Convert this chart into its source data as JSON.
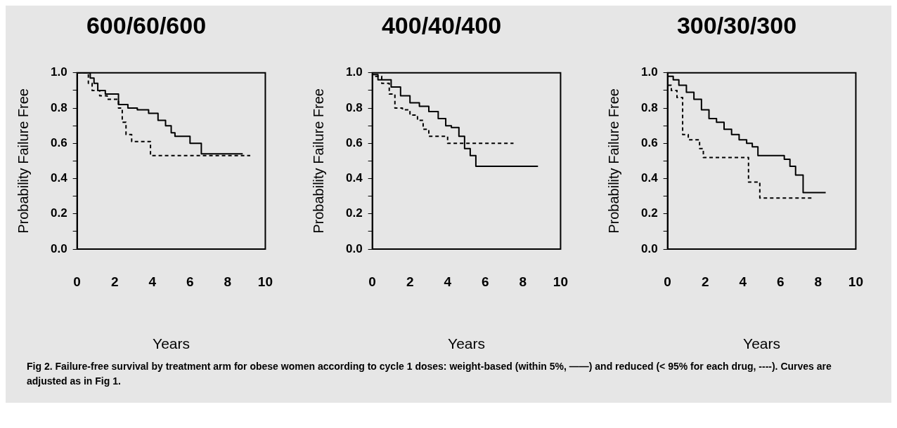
{
  "chart_data": [
    {
      "type": "step",
      "title": "600/60/600",
      "xlabel": "Years",
      "ylabel": "Probability Failure Free",
      "xlim": [
        0,
        10
      ],
      "xticks": [
        0,
        2,
        4,
        6,
        8,
        10
      ],
      "ylim": [
        0,
        1
      ],
      "yticks": [
        {
          "value": 0,
          "label": "0.0"
        },
        {
          "value": 0.1,
          "label": null
        },
        {
          "value": 0.2,
          "label": "0.2"
        },
        {
          "value": 0.3,
          "label": null
        },
        {
          "value": 0.4,
          "label": "0.4"
        },
        {
          "value": 0.5,
          "label": null
        },
        {
          "value": 0.6,
          "label": "0.6"
        },
        {
          "value": 0.7,
          "label": null
        },
        {
          "value": 0.8,
          "label": "0.8"
        },
        {
          "value": 0.9,
          "label": null
        },
        {
          "value": 1,
          "label": "1.0"
        }
      ],
      "grid": false,
      "legend": false,
      "marker": "none",
      "series": [
        {
          "color": "#000000",
          "line_style": "solid",
          "x": [
            0,
            0.7,
            0.9,
            1.1,
            1.5,
            2.2,
            2.7,
            3.2,
            3.8,
            4.3,
            4.7,
            5.0,
            5.2,
            6.0,
            6.6,
            7.1,
            8.8
          ],
          "values": [
            1,
            1,
            0.97,
            0.94,
            0.9,
            0.88,
            0.82,
            0.8,
            0.79,
            0.77,
            0.73,
            0.7,
            0.66,
            0.64,
            0.6,
            0.54,
            0.54
          ]
        },
        {
          "color": "#000000",
          "line_style": "dashed",
          "x": [
            0,
            0.6,
            0.8,
            1.2,
            1.6,
            2.2,
            2.4,
            2.6,
            2.9,
            3.9,
            5.3,
            9.2
          ],
          "values": [
            1,
            1,
            0.94,
            0.9,
            0.87,
            0.85,
            0.8,
            0.72,
            0.65,
            0.61,
            0.53,
            0.53
          ]
        }
      ]
    },
    {
      "type": "step",
      "title": "400/40/400",
      "xlabel": "Years",
      "ylabel": "Probability Failure Free",
      "xlim": [
        0,
        10
      ],
      "xticks": [
        0,
        2,
        4,
        6,
        8,
        10
      ],
      "ylim": [
        0,
        1
      ],
      "yticks": [
        {
          "value": 0,
          "label": "0.0"
        },
        {
          "value": 0.1,
          "label": null
        },
        {
          "value": 0.2,
          "label": "0.2"
        },
        {
          "value": 0.3,
          "label": null
        },
        {
          "value": 0.4,
          "label": "0.4"
        },
        {
          "value": 0.5,
          "label": null
        },
        {
          "value": 0.6,
          "label": "0.6"
        },
        {
          "value": 0.7,
          "label": null
        },
        {
          "value": 0.8,
          "label": "0.8"
        },
        {
          "value": 0.9,
          "label": null
        },
        {
          "value": 1,
          "label": "1.0"
        }
      ],
      "grid": false,
      "legend": false,
      "marker": "none",
      "series": [
        {
          "color": "#000000",
          "line_style": "solid",
          "x": [
            0,
            0.3,
            1.0,
            1.5,
            2.0,
            2.5,
            3.0,
            3.5,
            3.9,
            4.2,
            4.6,
            4.9,
            5.2,
            5.5,
            6.9,
            8.8
          ],
          "values": [
            1,
            0.99,
            0.96,
            0.92,
            0.87,
            0.83,
            0.81,
            0.78,
            0.74,
            0.7,
            0.69,
            0.64,
            0.57,
            0.53,
            0.47,
            0.47
          ]
        },
        {
          "color": "#000000",
          "line_style": "dashed",
          "x": [
            0,
            0.5,
            0.9,
            1.2,
            1.6,
            2.0,
            2.4,
            2.7,
            3.0,
            4.0,
            4.1,
            7.5
          ],
          "values": [
            1,
            0.98,
            0.94,
            0.88,
            0.8,
            0.79,
            0.76,
            0.73,
            0.68,
            0.64,
            0.6,
            0.6
          ]
        }
      ]
    },
    {
      "type": "step",
      "title": "300/30/300",
      "xlabel": "Years",
      "ylabel": "Probability Failure Free",
      "xlim": [
        0,
        10
      ],
      "xticks": [
        0,
        2,
        4,
        6,
        8,
        10
      ],
      "ylim": [
        0,
        1
      ],
      "yticks": [
        {
          "value": 0,
          "label": "0.0"
        },
        {
          "value": 0.1,
          "label": null
        },
        {
          "value": 0.2,
          "label": "0.2"
        },
        {
          "value": 0.3,
          "label": null
        },
        {
          "value": 0.4,
          "label": "0.4"
        },
        {
          "value": 0.5,
          "label": null
        },
        {
          "value": 0.6,
          "label": "0.6"
        },
        {
          "value": 0.7,
          "label": null
        },
        {
          "value": 0.8,
          "label": "0.8"
        },
        {
          "value": 0.9,
          "label": null
        },
        {
          "value": 1,
          "label": "1.0"
        }
      ],
      "grid": false,
      "legend": false,
      "marker": "none",
      "annotations": [
        "Fig 2.  Failure-free survival by treatment arm for obese women according to cycle 1 doses: weight-based (within 5%, ——) and reduced (< 95% for each drug, ----). Curves are adjusted as in Fig 1."
      ],
      "series": [
        {
          "color": "#000000",
          "line_style": "solid",
          "x": [
            0,
            0.3,
            0.6,
            1.0,
            1.4,
            1.8,
            2.2,
            2.6,
            3.0,
            3.4,
            3.8,
            4.2,
            4.5,
            4.8,
            5.0,
            6.2,
            6.5,
            6.8,
            7.2,
            7.8,
            8.4
          ],
          "values": [
            1,
            0.98,
            0.96,
            0.93,
            0.89,
            0.85,
            0.79,
            0.74,
            0.72,
            0.68,
            0.65,
            0.62,
            0.6,
            0.58,
            0.53,
            0.53,
            0.51,
            0.47,
            0.42,
            0.32,
            0.32
          ]
        },
        {
          "color": "#000000",
          "line_style": "dashed",
          "x": [
            0,
            0.2,
            0.5,
            0.8,
            1.1,
            1.7,
            1.9,
            4.3,
            4.9,
            7.0,
            7.7
          ],
          "values": [
            1,
            0.93,
            0.9,
            0.86,
            0.65,
            0.62,
            0.57,
            0.52,
            0.38,
            0.29,
            0.29
          ]
        }
      ]
    }
  ]
}
